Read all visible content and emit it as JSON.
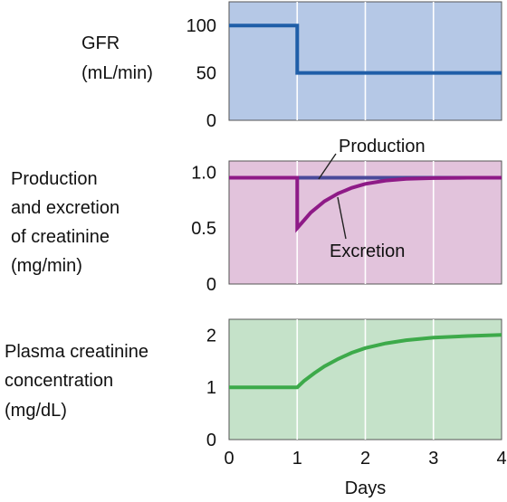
{
  "chart_data": [
    {
      "type": "line",
      "ylabel": [
        "GFR",
        "(mL/min)"
      ],
      "x_ticks": [
        0,
        1,
        2,
        3,
        4
      ],
      "y_ticks": [
        0,
        50,
        100
      ],
      "xlim": [
        0,
        4
      ],
      "ylim": [
        0,
        125
      ],
      "background": "#b5c8e6",
      "series": [
        {
          "color": "#1f5ea8",
          "points": [
            [
              0,
              100
            ],
            [
              1,
              100
            ],
            [
              1,
              50
            ],
            [
              4,
              50
            ]
          ]
        }
      ]
    },
    {
      "type": "line",
      "ylabel": [
        "Production",
        "and excretion",
        "of creatinine",
        "(mg/min)"
      ],
      "x_ticks": [
        0,
        1,
        2,
        3,
        4
      ],
      "y_ticks": [
        0,
        0.5,
        1.0
      ],
      "y_tick_labels": [
        "0",
        "0.5",
        "1.0"
      ],
      "xlim": [
        0,
        4
      ],
      "ylim": [
        0,
        1.1
      ],
      "background": "#e2c3dc",
      "series": [
        {
          "name": "Production",
          "color": "#4a4a9a",
          "points": [
            [
              0,
              0.95
            ],
            [
              4,
              0.95
            ]
          ]
        },
        {
          "name": "Excretion",
          "color": "#8e1a87",
          "points": [
            [
              0,
              0.95
            ],
            [
              1,
              0.95
            ],
            [
              1,
              0.5
            ],
            [
              1.2,
              0.64
            ],
            [
              1.4,
              0.74
            ],
            [
              1.6,
              0.81
            ],
            [
              1.8,
              0.86
            ],
            [
              2.0,
              0.895
            ],
            [
              2.3,
              0.925
            ],
            [
              2.6,
              0.94
            ],
            [
              3.0,
              0.947
            ],
            [
              3.5,
              0.95
            ],
            [
              4.0,
              0.95
            ]
          ]
        }
      ],
      "annotations": [
        {
          "text": "Production",
          "series": 0
        },
        {
          "text": "Excretion",
          "series": 1
        }
      ]
    },
    {
      "type": "line",
      "ylabel": [
        "Plasma creatinine",
        "concentration",
        "(mg/dL)"
      ],
      "xlabel": "Days",
      "x_ticks": [
        0,
        1,
        2,
        3,
        4
      ],
      "y_ticks": [
        0,
        1,
        2
      ],
      "xlim": [
        0,
        4
      ],
      "ylim": [
        0,
        2.3
      ],
      "background": "#c5e2c9",
      "series": [
        {
          "color": "#3daa4a",
          "points": [
            [
              0,
              1
            ],
            [
              1,
              1
            ],
            [
              1.1,
              1.12
            ],
            [
              1.25,
              1.27
            ],
            [
              1.4,
              1.4
            ],
            [
              1.6,
              1.54
            ],
            [
              1.8,
              1.66
            ],
            [
              2.0,
              1.75
            ],
            [
              2.3,
              1.84
            ],
            [
              2.6,
              1.9
            ],
            [
              3.0,
              1.95
            ],
            [
              3.5,
              1.98
            ],
            [
              4.0,
              2.0
            ]
          ]
        }
      ]
    }
  ]
}
